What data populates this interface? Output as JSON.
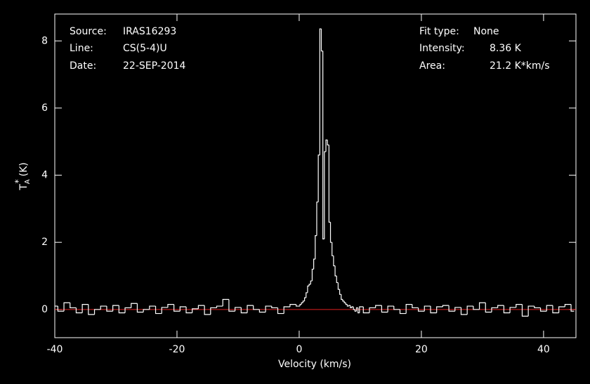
{
  "chart_data": {
    "type": "line",
    "xlabel": "Velocity (km/s)",
    "ylabel": {
      "main": "T",
      "sub": "A",
      "sup": "*",
      "unit": "(K)"
    },
    "annotations_left": [
      {
        "label": "Source:",
        "value": "IRAS16293"
      },
      {
        "label": "Line:",
        "value": "CS(5-4)U"
      },
      {
        "label": "Date:",
        "value": "22-SEP-2014"
      }
    ],
    "annotations_right": [
      {
        "label": "Fit type:",
        "value": "None"
      },
      {
        "label": "Intensity:",
        "value": "8.36 K"
      },
      {
        "label": "Area:",
        "value": "21.2 K*km/s"
      }
    ],
    "xlim": [
      -40,
      45.3
    ],
    "ylim": [
      -0.84,
      8.8
    ],
    "xticks": [
      -40,
      -20,
      0,
      20,
      40
    ],
    "yticks": [
      0,
      2,
      4,
      6,
      8
    ],
    "baseline": {
      "value": 0,
      "color": "#e02020"
    },
    "series": [
      {
        "color": "#ffffff",
        "x": [
          -40,
          -39,
          -38,
          -37,
          -36,
          -35,
          -34,
          -33,
          -32,
          -31,
          -30,
          -29,
          -28,
          -27,
          -26,
          -25,
          -24,
          -23,
          -22,
          -21,
          -20,
          -19,
          -18,
          -17,
          -16,
          -15,
          -14,
          -13,
          -12,
          -11,
          -10,
          -9,
          -8,
          -7,
          -6,
          -5,
          -4,
          -3,
          -2,
          -1,
          0,
          0.25,
          0.5,
          0.75,
          1,
          1.25,
          1.5,
          1.75,
          2,
          2.25,
          2.5,
          2.75,
          3,
          3.25,
          3.5,
          3.75,
          4,
          4.25,
          4.5,
          4.75,
          5,
          5.25,
          5.5,
          5.75,
          6,
          6.25,
          6.5,
          6.75,
          7,
          7.25,
          7.5,
          7.75,
          8,
          8.25,
          8.5,
          8.75,
          9,
          9.25,
          9.5,
          9.75,
          10,
          11,
          12,
          13,
          14,
          15,
          16,
          17,
          18,
          19,
          20,
          21,
          22,
          23,
          24,
          25,
          26,
          27,
          28,
          29,
          30,
          31,
          32,
          33,
          34,
          35,
          36,
          37,
          38,
          39,
          40,
          41,
          42,
          43,
          44,
          45
        ],
        "values": [
          0.1,
          -0.05,
          0.2,
          0.05,
          -0.1,
          0.15,
          -0.15,
          0.0,
          0.1,
          -0.05,
          0.12,
          -0.1,
          0.05,
          0.18,
          -0.08,
          0.0,
          0.1,
          -0.12,
          0.06,
          0.15,
          -0.05,
          0.08,
          -0.1,
          0.02,
          0.12,
          -0.15,
          0.05,
          0.1,
          0.3,
          -0.05,
          0.06,
          -0.1,
          0.12,
          0.0,
          -0.08,
          0.1,
          0.05,
          -0.12,
          0.08,
          0.15,
          0.1,
          0.15,
          0.2,
          0.25,
          0.35,
          0.5,
          0.7,
          0.75,
          0.85,
          1.2,
          1.5,
          2.2,
          3.2,
          4.6,
          8.36,
          7.7,
          2.1,
          4.7,
          5.05,
          4.9,
          2.6,
          2.0,
          1.6,
          1.3,
          1.0,
          0.8,
          0.6,
          0.45,
          0.3,
          0.25,
          0.2,
          0.15,
          0.1,
          0.12,
          0.05,
          0.08,
          0.0,
          -0.05,
          0.05,
          -0.1,
          0.08,
          -0.1,
          0.05,
          0.12,
          -0.08,
          0.1,
          0.0,
          -0.12,
          0.15,
          0.05,
          -0.05,
          0.1,
          -0.1,
          0.08,
          0.12,
          -0.05,
          0.06,
          -0.15,
          0.1,
          0.0,
          0.2,
          -0.08,
          0.05,
          0.12,
          -0.1,
          0.06,
          0.15,
          -0.2,
          0.1,
          0.05,
          -0.05,
          0.12,
          -0.1,
          0.08,
          0.15,
          -0.05
        ]
      }
    ]
  }
}
